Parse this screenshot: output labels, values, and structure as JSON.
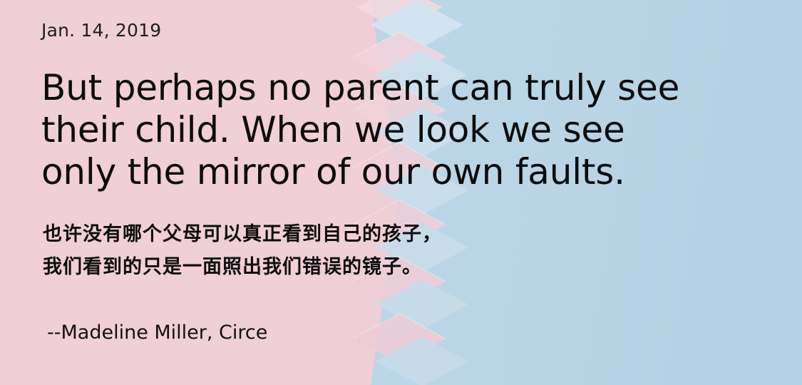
{
  "post": {
    "date": "Jan. 14, 2019",
    "quote_en_lines": [
      "But perhaps no parent can truly see",
      "their child. When we look we see",
      "only the mirror of our own faults."
    ],
    "quote_zh_lines": [
      "也许没有哪个父母可以真正看到自己的孩子，",
      "我们看到的只是一面照出我们错误的镜子。"
    ],
    "attribution": "--Madeline Miller, Circe"
  },
  "colors": {
    "pink": "#f0cfd6",
    "blue": "#bcd6e6",
    "text": "#0c0c0c"
  }
}
